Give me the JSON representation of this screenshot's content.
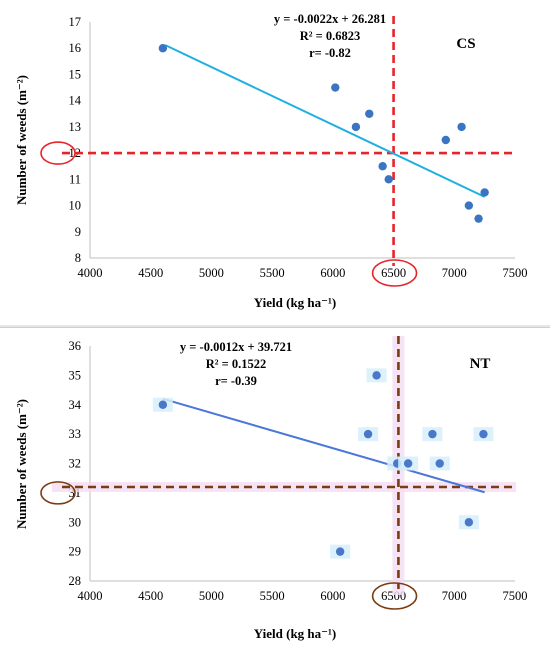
{
  "chart_data": [
    {
      "type": "scatter",
      "tag": "CS",
      "equation": "y = -0.0022x + 26.281",
      "r2": "R² = 0.6823",
      "r": "r= -0.82",
      "xlabel": "Yield (kg ha⁻¹)",
      "ylabel": "Number of weeds (m⁻²)",
      "xlim": [
        4000,
        7500
      ],
      "ylim": [
        8,
        17
      ],
      "x_ticks": [
        4000,
        4500,
        5000,
        5500,
        6000,
        6500,
        7000,
        7500
      ],
      "y_ticks": [
        8,
        9,
        10,
        11,
        12,
        13,
        14,
        15,
        16,
        17
      ],
      "grid": false,
      "marker_color": "#3a75c4",
      "trend_color": "#1fb0e0",
      "guide_color": "#e8242b",
      "trend": {
        "slope": -0.0022,
        "intercept": 26.281,
        "x_range": [
          4620,
          7250
        ]
      },
      "guides": {
        "x": 6500,
        "y": 12
      },
      "circled_ticks": {
        "x": 6500,
        "y": 12
      },
      "points": [
        {
          "x": 4600,
          "y": 16
        },
        {
          "x": 6020,
          "y": 14.5
        },
        {
          "x": 6190,
          "y": 13
        },
        {
          "x": 6300,
          "y": 13.5
        },
        {
          "x": 6410,
          "y": 11.5
        },
        {
          "x": 6460,
          "y": 11
        },
        {
          "x": 6930,
          "y": 12.5
        },
        {
          "x": 7060,
          "y": 13
        },
        {
          "x": 7120,
          "y": 10
        },
        {
          "x": 7200,
          "y": 9.5
        },
        {
          "x": 7250,
          "y": 10.5
        }
      ]
    },
    {
      "type": "scatter",
      "tag": "NT",
      "equation": "y = -0.0012x + 39.721",
      "r2": "R² = 0.1522",
      "r": "r= -0.39",
      "xlabel": "Yield (kg ha⁻¹)",
      "ylabel": "Number of weeds (m⁻²)",
      "xlim": [
        4000,
        7500
      ],
      "ylim": [
        28,
        36
      ],
      "x_ticks": [
        4000,
        4500,
        5000,
        5500,
        6000,
        6500,
        7000,
        7500
      ],
      "y_ticks": [
        28,
        29,
        30,
        31,
        32,
        33,
        34,
        35,
        36
      ],
      "grid": false,
      "marker_color": "#4a78c8",
      "trend_color": "#4a78d8",
      "guide_color": "#7a3c12",
      "trend": {
        "slope": -0.0012,
        "intercept": 39.721,
        "x_range": [
          4600,
          7250
        ]
      },
      "guides": {
        "x": 6540,
        "y": 31.2
      },
      "circled_ticks": {
        "x": 6500,
        "y": 31
      },
      "points": [
        {
          "x": 4600,
          "y": 34
        },
        {
          "x": 6060,
          "y": 29
        },
        {
          "x": 6290,
          "y": 33
        },
        {
          "x": 6360,
          "y": 35
        },
        {
          "x": 6530,
          "y": 32
        },
        {
          "x": 6620,
          "y": 32
        },
        {
          "x": 6820,
          "y": 33
        },
        {
          "x": 6880,
          "y": 32
        },
        {
          "x": 7120,
          "y": 30
        },
        {
          "x": 7240,
          "y": 33
        }
      ]
    }
  ]
}
